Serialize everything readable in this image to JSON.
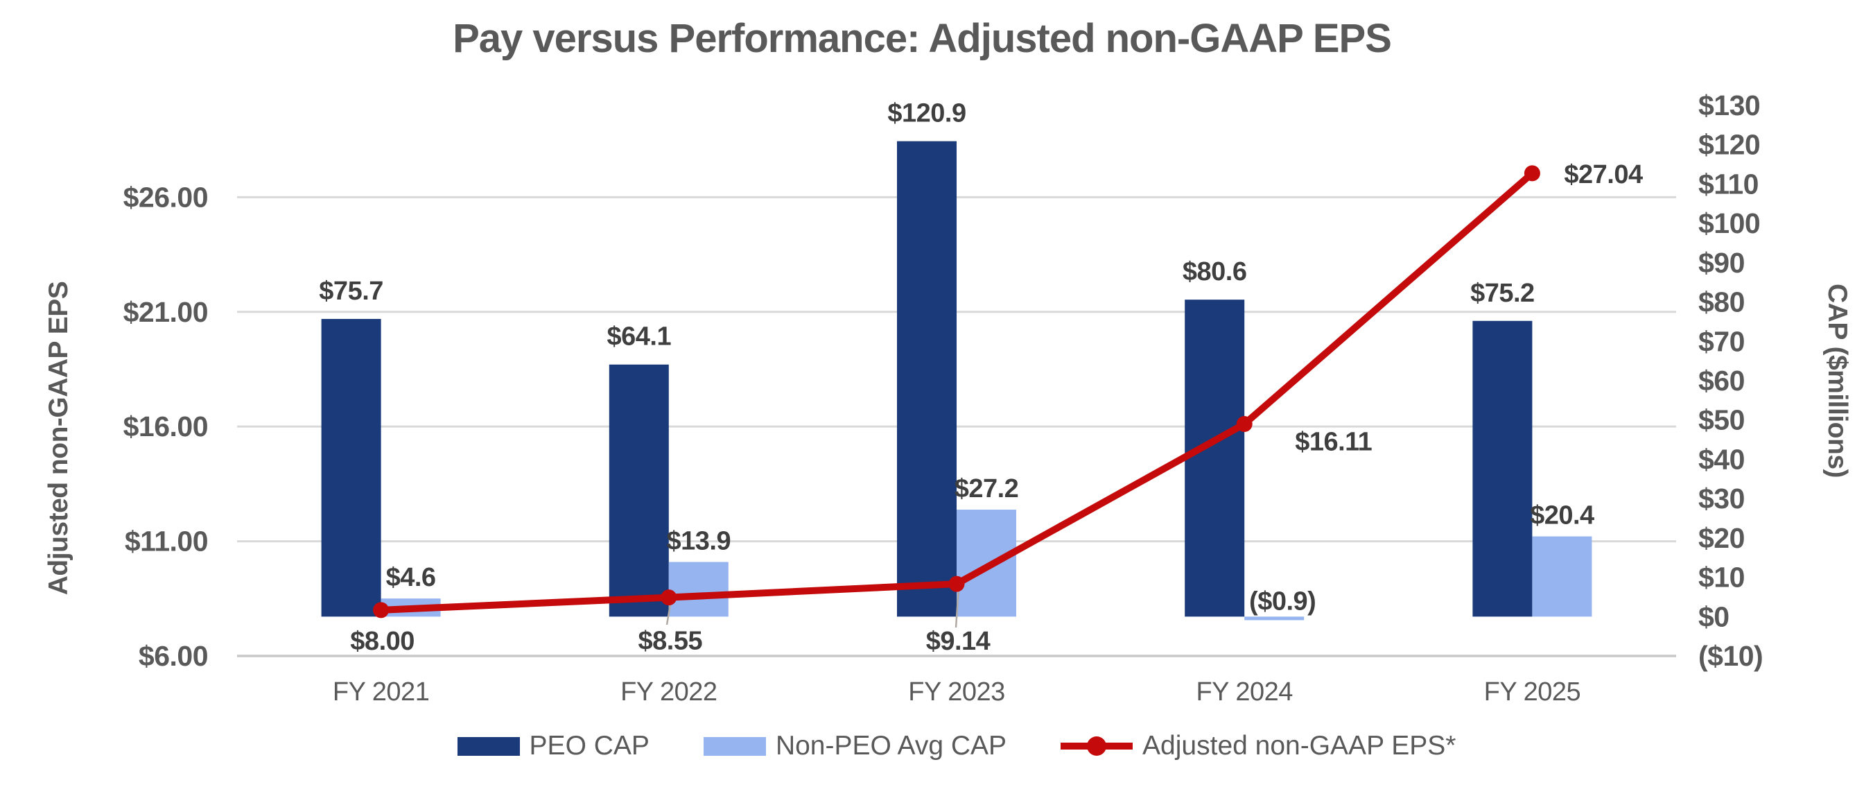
{
  "title": "Pay versus Performance: Adjusted non-GAAP EPS",
  "colors": {
    "peo_bar": "#1A3A7A",
    "non_peo_bar": "#96B4F0",
    "eps_line": "#C40A0A",
    "gridline": "#D9D9D9",
    "axis_line": "#C9C7C7",
    "title_text": "#595959",
    "axis_text": "#595959",
    "data_label_text": "#3F3F3F",
    "leader_line": "#AFA9A2"
  },
  "chart_data": {
    "type": "bar",
    "subtype": "combo-bar-line-dual-axis",
    "grid": true,
    "legend_position": "bottom",
    "categories": [
      "FY 2021",
      "FY 2022",
      "FY 2023",
      "FY 2024",
      "FY 2025"
    ],
    "series": [
      {
        "name": "PEO CAP",
        "type": "bar",
        "axis": "right",
        "color": "#1A3A7A",
        "values": [
          75.7,
          64.1,
          120.9,
          80.6,
          75.2
        ],
        "data_labels": [
          "$75.7",
          "$64.1",
          "$120.9",
          "$80.6",
          "$75.2"
        ]
      },
      {
        "name": "Non-PEO Avg CAP",
        "type": "bar",
        "axis": "right",
        "color": "#96B4F0",
        "values": [
          4.6,
          13.9,
          27.2,
          -0.9,
          20.4
        ],
        "data_labels": [
          "$4.6",
          "$13.9",
          "$27.2",
          "($0.9)",
          "$20.4"
        ]
      },
      {
        "name": "Adjusted non-GAAP EPS*",
        "type": "line",
        "axis": "left",
        "color": "#C40A0A",
        "values": [
          8.0,
          8.55,
          9.14,
          16.11,
          27.04
        ],
        "data_labels": [
          "$8.00",
          "$8.55",
          "$9.14",
          "$16.11",
          "$27.04"
        ]
      }
    ],
    "left_axis": {
      "title": "Adjusted non-GAAP EPS",
      "tick_labels": [
        "$26.00",
        "$21.00",
        "$16.00",
        "$11.00",
        "$6.00"
      ],
      "tick_values": [
        26,
        21,
        16,
        11,
        6
      ],
      "min": 6,
      "plot_top_value": 30,
      "major_unit": 5
    },
    "right_axis": {
      "title": "CAP ($millions)",
      "tick_labels": [
        "$130",
        "$120",
        "$110",
        "$100",
        "$90",
        "$80",
        "$70",
        "$60",
        "$50",
        "$40",
        "$30",
        "$20",
        "$10",
        "$0",
        "($10)"
      ],
      "tick_values": [
        130,
        120,
        110,
        100,
        90,
        80,
        70,
        60,
        50,
        40,
        30,
        20,
        10,
        0,
        -10
      ],
      "min": -10,
      "max": 130,
      "major_unit": 10
    },
    "x_axis": {
      "tick_labels": [
        "FY 2021",
        "FY 2022",
        "FY 2023",
        "FY 2024",
        "FY 2025"
      ]
    },
    "legend": [
      "PEO CAP",
      "Non-PEO Avg CAP",
      "Adjusted non-GAAP EPS*"
    ]
  }
}
